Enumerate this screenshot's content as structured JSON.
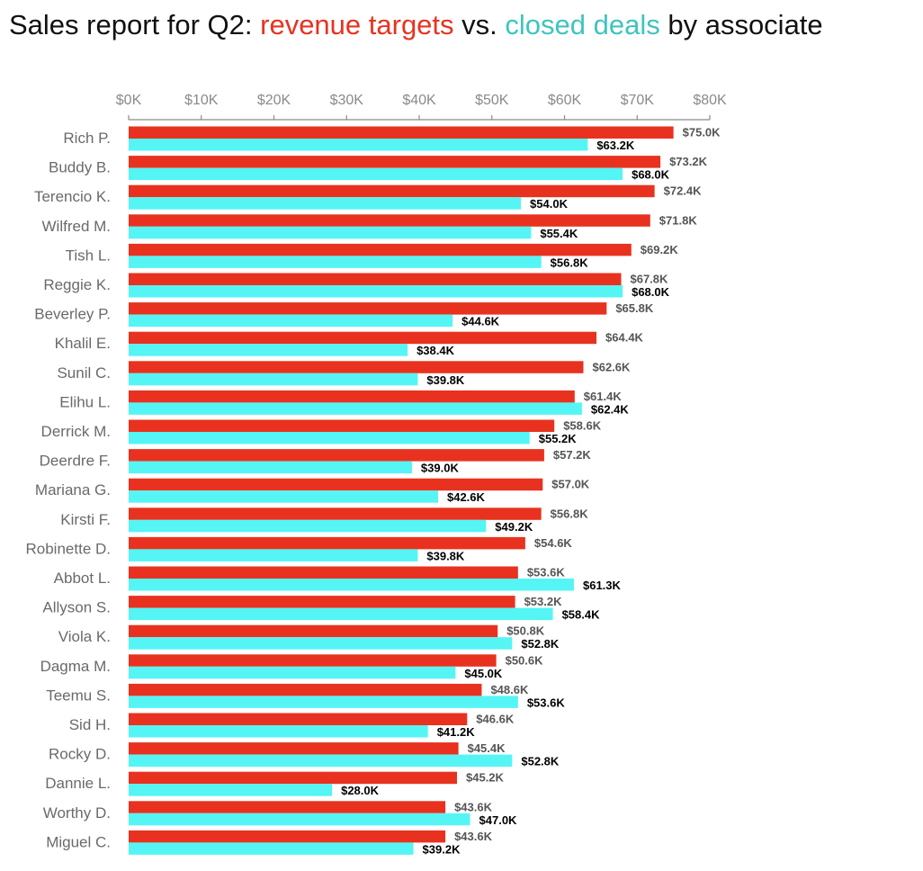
{
  "title": {
    "prefix": "Sales report for Q2: ",
    "series1": "revenue targets",
    "middle": " vs. ",
    "series2": "closed deals",
    "suffix": " by associate"
  },
  "colors": {
    "target": "#e8321f",
    "deal": "#55f5f5",
    "axis": "#8a8a8a"
  },
  "chart_data": {
    "type": "bar",
    "orientation": "horizontal",
    "title": "Sales report for Q2: revenue targets vs. closed deals by associate",
    "xlabel": "",
    "ylabel": "",
    "xlim": [
      0,
      80
    ],
    "x_axis_position": "top",
    "x_ticks": [
      0,
      10,
      20,
      30,
      40,
      50,
      60,
      70,
      80
    ],
    "x_tick_labels": [
      "$0K",
      "$10K",
      "$20K",
      "$30K",
      "$40K",
      "$50K",
      "$60K",
      "$70K",
      "$80K"
    ],
    "grid": false,
    "categories": [
      "Rich P.",
      "Buddy B.",
      "Terencio K.",
      "Wilfred M.",
      "Tish L.",
      "Reggie K.",
      "Beverley P.",
      "Khalil E.",
      "Sunil C.",
      "Elihu L.",
      "Derrick M.",
      "Deerdre F.",
      "Mariana G.",
      "Kirsti F.",
      "Robinette D.",
      "Abbot L.",
      "Allyson S.",
      "Viola K.",
      "Dagma M.",
      "Teemu S.",
      "Sid H.",
      "Rocky D.",
      "Dannie L.",
      "Worthy D.",
      "Miguel C."
    ],
    "series": [
      {
        "name": "revenue targets",
        "values": [
          75.0,
          73.2,
          72.4,
          71.8,
          69.2,
          67.8,
          65.8,
          64.4,
          62.6,
          61.4,
          58.6,
          57.2,
          57.0,
          56.8,
          54.6,
          53.6,
          53.2,
          50.8,
          50.6,
          48.6,
          46.6,
          45.4,
          45.2,
          43.6,
          43.6
        ],
        "labels": [
          "$75.0K",
          "$73.2K",
          "$72.4K",
          "$71.8K",
          "$69.2K",
          "$67.8K",
          "$65.8K",
          "$64.4K",
          "$62.6K",
          "$61.4K",
          "$58.6K",
          "$57.2K",
          "$57.0K",
          "$56.8K",
          "$54.6K",
          "$53.6K",
          "$53.2K",
          "$50.8K",
          "$50.6K",
          "$48.6K",
          "$46.6K",
          "$45.4K",
          "$45.2K",
          "$43.6K",
          "$43.6K"
        ]
      },
      {
        "name": "closed deals",
        "values": [
          63.2,
          68.0,
          54.0,
          55.4,
          56.8,
          68.0,
          44.6,
          38.4,
          39.8,
          62.4,
          55.2,
          39.0,
          42.6,
          49.2,
          39.8,
          61.3,
          58.4,
          52.8,
          45.0,
          53.6,
          41.2,
          52.8,
          28.0,
          47.0,
          39.2
        ],
        "labels": [
          "$63.2K",
          "$68.0K",
          "$54.0K",
          "$55.4K",
          "$56.8K",
          "$68.0K",
          "$44.6K",
          "$38.4K",
          "$39.8K",
          "$62.4K",
          "$55.2K",
          "$39.0K",
          "$42.6K",
          "$49.2K",
          "$39.8K",
          "$61.3K",
          "$58.4K",
          "$52.8K",
          "$45.0K",
          "$53.6K",
          "$41.2K",
          "$52.8K",
          "$28.0K",
          "$47.0K",
          "$39.2K"
        ]
      }
    ]
  }
}
